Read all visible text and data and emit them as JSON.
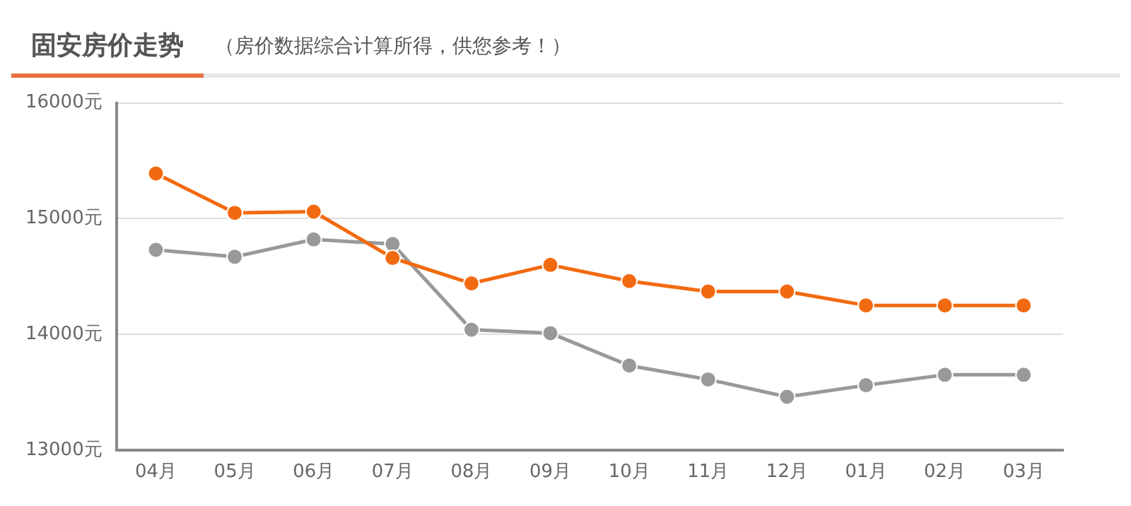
{
  "chart_data": {
    "type": "line",
    "title": "固安房价走势",
    "subtitle": "（房价数据综合计算所得，供您参考！）",
    "categories": [
      "04月",
      "05月",
      "06月",
      "07月",
      "08月",
      "09月",
      "10月",
      "11月",
      "12月",
      "01月",
      "02月",
      "03月"
    ],
    "series": [
      {
        "color": "#f26a10",
        "values": [
          15390,
          15050,
          15060,
          14660,
          14440,
          14600,
          14460,
          14370,
          14370,
          14250,
          14250,
          14250
        ]
      },
      {
        "color": "#999999",
        "values": [
          14730,
          14670,
          14820,
          14780,
          14040,
          14010,
          13730,
          13610,
          13460,
          13560,
          13650,
          13650
        ]
      }
    ],
    "ylim": [
      13000,
      16000
    ],
    "yticks": [
      {
        "value": 13000,
        "label": "13000元"
      },
      {
        "value": 14000,
        "label": "14000元"
      },
      {
        "value": 15000,
        "label": "15000元"
      },
      {
        "value": 16000,
        "label": "16000元"
      }
    ],
    "grid": "y",
    "legend": false,
    "marker": "circle",
    "line_style": "solid"
  }
}
